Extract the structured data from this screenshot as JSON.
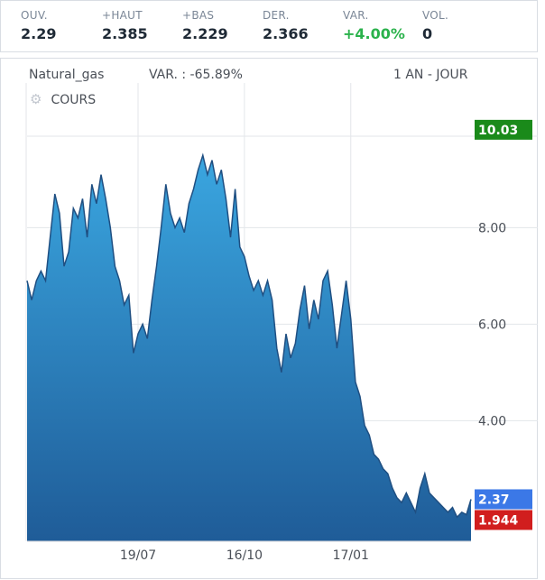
{
  "stats": [
    {
      "label": "OUV.",
      "value": "2.29",
      "positive": false
    },
    {
      "label": "+HAUT",
      "value": "2.385",
      "positive": false
    },
    {
      "label": "+BAS",
      "value": "2.229",
      "positive": false
    },
    {
      "label": "DER.",
      "value": "2.366",
      "positive": false
    },
    {
      "label": "VAR.",
      "value": "+4.00%",
      "positive": true
    },
    {
      "label": "VOL.",
      "value": "0",
      "positive": false
    }
  ],
  "header": {
    "symbol": "Natural_gas",
    "variation": "VAR. : -65.89%",
    "period": "1 AN - JOUR",
    "series_label": "COURS"
  },
  "colors": {
    "area_top": "#3aa6e0",
    "area_bottom": "#1f5c98",
    "line": "#1f4f82",
    "high_badge": "#1a8a1a",
    "last_badge": "#3b78e7",
    "low_badge": "#d11e1e"
  },
  "chart_data": {
    "type": "area",
    "ylim": [
      1.5,
      11
    ],
    "yticks": [
      4.0,
      6.0,
      8.0
    ],
    "ytick_labels": [
      "4.00",
      "6.00",
      "8.00"
    ],
    "xticks": [
      {
        "index": 24,
        "label": "19/07"
      },
      {
        "index": 47,
        "label": "16/10"
      },
      {
        "index": 70,
        "label": "17/01"
      }
    ],
    "badges": [
      {
        "label": "10.03",
        "value": 10.03,
        "color": "#1a8a1a"
      },
      {
        "label": "2.37",
        "value": 2.37,
        "color": "#3b78e7"
      },
      {
        "label": "1.944",
        "value": 1.944,
        "color": "#d11e1e"
      }
    ],
    "values": [
      6.9,
      6.5,
      6.9,
      7.1,
      6.9,
      7.8,
      8.7,
      8.3,
      7.2,
      7.5,
      8.4,
      8.2,
      8.6,
      7.8,
      8.9,
      8.5,
      9.1,
      8.6,
      8.0,
      7.2,
      6.9,
      6.4,
      6.6,
      5.4,
      5.8,
      6.0,
      5.7,
      6.5,
      7.2,
      8.0,
      8.9,
      8.3,
      8.0,
      8.2,
      7.9,
      8.5,
      8.8,
      9.2,
      9.5,
      9.1,
      9.4,
      8.9,
      9.2,
      8.6,
      7.8,
      8.8,
      7.6,
      7.4,
      7.0,
      6.7,
      6.9,
      6.6,
      6.9,
      6.5,
      5.5,
      5.0,
      5.8,
      5.3,
      5.6,
      6.3,
      6.8,
      5.9,
      6.5,
      6.1,
      6.9,
      7.1,
      6.4,
      5.5,
      6.2,
      6.9,
      6.1,
      4.8,
      4.5,
      3.9,
      3.7,
      3.3,
      3.2,
      3.0,
      2.9,
      2.6,
      2.4,
      2.3,
      2.5,
      2.3,
      2.1,
      2.6,
      2.9,
      2.5,
      2.4,
      2.3,
      2.2,
      2.1,
      2.2,
      2.0,
      2.1,
      2.05,
      2.37
    ]
  }
}
